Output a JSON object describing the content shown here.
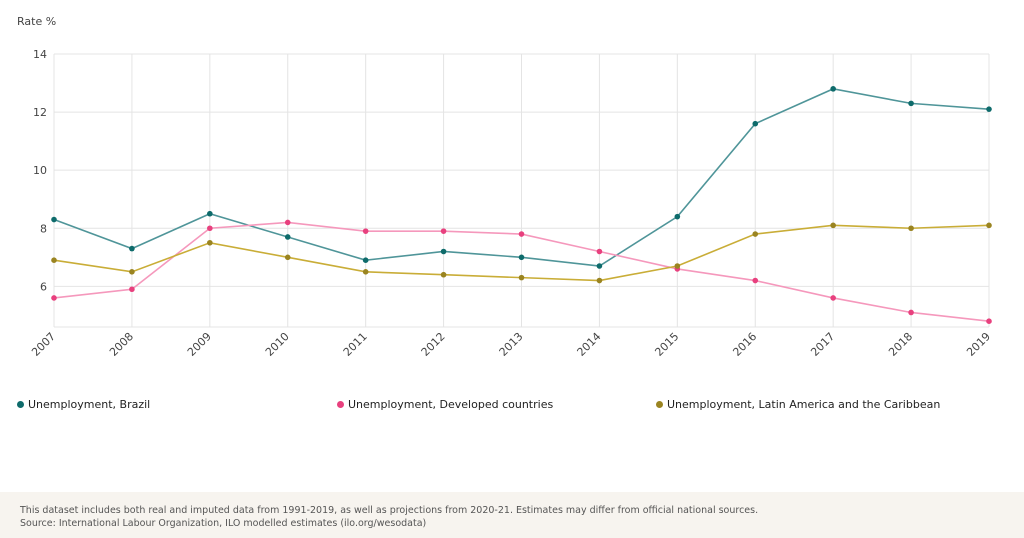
{
  "chart_data": {
    "type": "line",
    "ylabel": "Rate %",
    "xlabel": "",
    "x": [
      "2007",
      "2008",
      "2009",
      "2010",
      "2011",
      "2012",
      "2013",
      "2014",
      "2015",
      "2016",
      "2017",
      "2018",
      "2019"
    ],
    "ylim": [
      4.6,
      14
    ],
    "yticks": [
      6,
      8,
      10,
      12,
      14
    ],
    "grid": true,
    "legend_position": "bottom",
    "series": [
      {
        "name": "Unemployment, Brazil",
        "line_color": "#4f9599",
        "marker_color": "#0e6b6b",
        "values": [
          8.3,
          7.3,
          8.5,
          7.7,
          6.9,
          7.2,
          7.0,
          6.7,
          8.4,
          11.6,
          12.8,
          12.3,
          12.1
        ]
      },
      {
        "name": "Unemployment, Developed countries",
        "line_color": "#f598bc",
        "marker_color": "#e8407e",
        "values": [
          5.6,
          5.9,
          8.0,
          8.2,
          7.9,
          7.9,
          7.8,
          7.2,
          6.6,
          6.2,
          5.6,
          5.1,
          4.8
        ]
      },
      {
        "name": "Unemployment, Latin America and the Caribbean",
        "line_color": "#c9ad37",
        "marker_color": "#9a8421",
        "values": [
          6.9,
          6.5,
          7.5,
          7.0,
          6.5,
          6.4,
          6.3,
          6.2,
          6.7,
          7.8,
          8.1,
          8.0,
          8.1
        ]
      }
    ]
  },
  "footer": {
    "note": "This dataset includes both real and imputed data from 1991-2019, as well as projections from 2020-21. Estimates may differ from official national sources.",
    "source": "Source: International Labour Organization, ILO modelled estimates (ilo.org/wesodata)"
  }
}
